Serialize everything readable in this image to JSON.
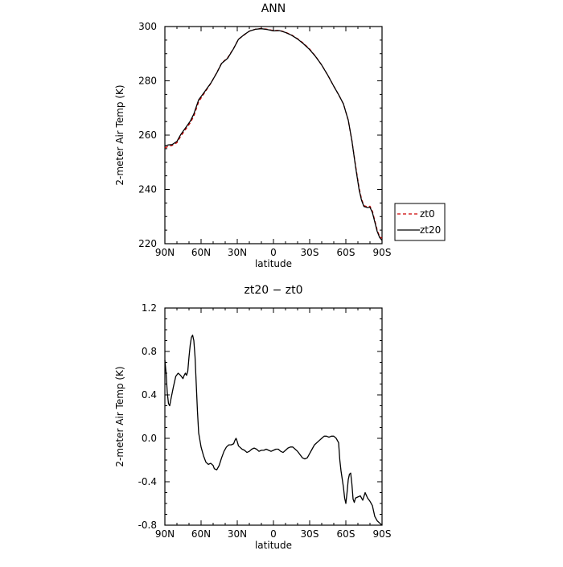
{
  "chart_data": [
    {
      "type": "line",
      "title": "ANN",
      "xlabel": "latitude",
      "ylabel": "2-meter Air Temp (K)",
      "xlim": [
        90,
        -90
      ],
      "ylim": [
        220,
        300
      ],
      "xticks": [
        90,
        60,
        30,
        0,
        -30,
        -60,
        -90
      ],
      "xtick_labels": [
        "90N",
        "60N",
        "30N",
        "0",
        "30S",
        "60S",
        "90S"
      ],
      "yticks": [
        220,
        240,
        260,
        280,
        300
      ],
      "yticks_minor_step": 5,
      "legend_position": "right",
      "series": [
        {
          "name": "zt0",
          "color": "#cc0000",
          "dash": "dashed",
          "points": [
            [
              90,
              255.3
            ],
            [
              87,
              255.9
            ],
            [
              84,
              256.2
            ],
            [
              80,
              257.2
            ],
            [
              77,
              259.5
            ],
            [
              73,
              262.0
            ],
            [
              69,
              264.5
            ],
            [
              66,
              267.0
            ],
            [
              62,
              272.3
            ],
            [
              58,
              275.0
            ],
            [
              52,
              279.0
            ],
            [
              47,
              283.0
            ],
            [
              43,
              286.5
            ],
            [
              38,
              288.5
            ],
            [
              33,
              292.0
            ],
            [
              29,
              295.3
            ],
            [
              24,
              297.0
            ],
            [
              20,
              298.3
            ],
            [
              15,
              299.0
            ],
            [
              10,
              299.3
            ],
            [
              5,
              299.0
            ],
            [
              0,
              298.5
            ],
            [
              -5,
              298.6
            ],
            [
              -10,
              297.9
            ],
            [
              -15,
              296.9
            ],
            [
              -20,
              295.5
            ],
            [
              -25,
              293.8
            ],
            [
              -30,
              291.7
            ],
            [
              -35,
              289.0
            ],
            [
              -40,
              285.8
            ],
            [
              -45,
              282.1
            ],
            [
              -50,
              278.0
            ],
            [
              -54,
              274.9
            ],
            [
              -58,
              271.5
            ],
            [
              -62,
              265.5
            ],
            [
              -65,
              258.0
            ],
            [
              -68,
              249.0
            ],
            [
              -71,
              240.5
            ],
            [
              -73,
              236.5
            ],
            [
              -75,
              234.0
            ],
            [
              -78,
              233.6
            ],
            [
              -80,
              233.8
            ],
            [
              -82,
              232.0
            ],
            [
              -84,
              228.5
            ],
            [
              -86,
              225.0
            ],
            [
              -88,
              222.6
            ],
            [
              -90,
              222.0
            ]
          ]
        },
        {
          "name": "zt20",
          "color": "#000000",
          "dash": "solid",
          "points": [
            [
              90,
              256.0
            ],
            [
              87,
              256.4
            ],
            [
              84,
              256.5
            ],
            [
              80,
              257.7
            ],
            [
              77,
              260.1
            ],
            [
              73,
              262.6
            ],
            [
              69,
              265.1
            ],
            [
              66,
              267.8
            ],
            [
              62,
              273.0
            ],
            [
              58,
              275.4
            ],
            [
              52,
              279.1
            ],
            [
              47,
              282.9
            ],
            [
              43,
              286.4
            ],
            [
              38,
              288.3
            ],
            [
              33,
              291.9
            ],
            [
              29,
              295.3
            ],
            [
              24,
              297.1
            ],
            [
              20,
              298.3
            ],
            [
              15,
              299.0
            ],
            [
              10,
              299.2
            ],
            [
              5,
              298.9
            ],
            [
              0,
              298.4
            ],
            [
              -5,
              298.5
            ],
            [
              -10,
              297.8
            ],
            [
              -15,
              296.8
            ],
            [
              -20,
              295.4
            ],
            [
              -25,
              293.6
            ],
            [
              -30,
              291.5
            ],
            [
              -35,
              288.9
            ],
            [
              -40,
              285.8
            ],
            [
              -45,
              282.1
            ],
            [
              -50,
              278.0
            ],
            [
              -54,
              274.9
            ],
            [
              -58,
              271.5
            ],
            [
              -62,
              265.5
            ],
            [
              -65,
              258.0
            ],
            [
              -68,
              248.5
            ],
            [
              -71,
              239.9
            ],
            [
              -73,
              236.0
            ],
            [
              -75,
              233.7
            ],
            [
              -78,
              233.3
            ],
            [
              -80,
              233.4
            ],
            [
              -82,
              231.5
            ],
            [
              -84,
              228.0
            ],
            [
              -86,
              224.5
            ],
            [
              -88,
              222.3
            ],
            [
              -90,
              221.2
            ]
          ]
        }
      ]
    },
    {
      "type": "line",
      "title": "zt20 − zt0",
      "xlabel": "latitude",
      "ylabel": "2-meter Air Temp (K)",
      "xlim": [
        90,
        -90
      ],
      "ylim": [
        -0.8,
        1.2
      ],
      "xticks": [
        90,
        60,
        30,
        0,
        -30,
        -60,
        -90
      ],
      "xtick_labels": [
        "90N",
        "60N",
        "30N",
        "0",
        "30S",
        "60S",
        "90S"
      ],
      "yticks": [
        -0.8,
        -0.4,
        0.0,
        0.4,
        0.8,
        1.2
      ],
      "ytick_labels": [
        "-0.8",
        "-0.4",
        "0.0",
        "0.4",
        "0.8",
        "1.2"
      ],
      "yticks_minor_step": 0.1,
      "series": [
        {
          "color": "#000000",
          "dash": "solid",
          "points": [
            [
              90,
              0.72
            ],
            [
              89,
              0.6
            ],
            [
              88,
              0.42
            ],
            [
              87,
              0.32
            ],
            [
              86,
              0.3
            ],
            [
              85,
              0.36
            ],
            [
              83,
              0.47
            ],
            [
              81,
              0.57
            ],
            [
              79,
              0.6
            ],
            [
              77,
              0.58
            ],
            [
              75,
              0.55
            ],
            [
              74,
              0.58
            ],
            [
              73,
              0.6
            ],
            [
              72,
              0.58
            ],
            [
              71,
              0.62
            ],
            [
              70,
              0.75
            ],
            [
              69,
              0.86
            ],
            [
              68,
              0.93
            ],
            [
              67,
              0.95
            ],
            [
              66,
              0.9
            ],
            [
              65,
              0.75
            ],
            [
              64,
              0.5
            ],
            [
              63,
              0.25
            ],
            [
              62,
              0.05
            ],
            [
              60,
              -0.08
            ],
            [
              58,
              -0.16
            ],
            [
              56,
              -0.22
            ],
            [
              54,
              -0.24
            ],
            [
              52,
              -0.23
            ],
            [
              50,
              -0.25
            ],
            [
              49,
              -0.28
            ],
            [
              47,
              -0.29
            ],
            [
              45,
              -0.25
            ],
            [
              43,
              -0.18
            ],
            [
              41,
              -0.12
            ],
            [
              39,
              -0.08
            ],
            [
              37,
              -0.06
            ],
            [
              35,
              -0.06
            ],
            [
              33,
              -0.05
            ],
            [
              32,
              -0.02
            ],
            [
              31,
              0.0
            ],
            [
              30,
              -0.03
            ],
            [
              29,
              -0.07
            ],
            [
              28,
              -0.08
            ],
            [
              26,
              -0.1
            ],
            [
              24,
              -0.11
            ],
            [
              22,
              -0.13
            ],
            [
              20,
              -0.12
            ],
            [
              18,
              -0.1
            ],
            [
              16,
              -0.09
            ],
            [
              14,
              -0.1
            ],
            [
              12,
              -0.12
            ],
            [
              10,
              -0.11
            ],
            [
              8,
              -0.11
            ],
            [
              6,
              -0.1
            ],
            [
              4,
              -0.11
            ],
            [
              2,
              -0.12
            ],
            [
              0,
              -0.11
            ],
            [
              -2,
              -0.1
            ],
            [
              -4,
              -0.1
            ],
            [
              -6,
              -0.12
            ],
            [
              -8,
              -0.13
            ],
            [
              -10,
              -0.11
            ],
            [
              -12,
              -0.09
            ],
            [
              -14,
              -0.08
            ],
            [
              -16,
              -0.08
            ],
            [
              -18,
              -0.1
            ],
            [
              -20,
              -0.12
            ],
            [
              -22,
              -0.15
            ],
            [
              -24,
              -0.18
            ],
            [
              -26,
              -0.19
            ],
            [
              -28,
              -0.18
            ],
            [
              -30,
              -0.14
            ],
            [
              -32,
              -0.1
            ],
            [
              -34,
              -0.06
            ],
            [
              -36,
              -0.04
            ],
            [
              -38,
              -0.02
            ],
            [
              -40,
              0.0
            ],
            [
              -42,
              0.02
            ],
            [
              -44,
              0.02
            ],
            [
              -46,
              0.01
            ],
            [
              -48,
              0.02
            ],
            [
              -50,
              0.02
            ],
            [
              -52,
              0.0
            ],
            [
              -54,
              -0.04
            ],
            [
              -55,
              -0.2
            ],
            [
              -56,
              -0.3
            ],
            [
              -58,
              -0.45
            ],
            [
              -59,
              -0.55
            ],
            [
              -60,
              -0.6
            ],
            [
              -61,
              -0.5
            ],
            [
              -62,
              -0.38
            ],
            [
              -63,
              -0.33
            ],
            [
              -64,
              -0.32
            ],
            [
              -65,
              -0.42
            ],
            [
              -66,
              -0.56
            ],
            [
              -67,
              -0.59
            ],
            [
              -68,
              -0.55
            ],
            [
              -70,
              -0.54
            ],
            [
              -72,
              -0.53
            ],
            [
              -74,
              -0.57
            ],
            [
              -76,
              -0.5
            ],
            [
              -78,
              -0.55
            ],
            [
              -80,
              -0.58
            ],
            [
              -82,
              -0.62
            ],
            [
              -84,
              -0.72
            ],
            [
              -86,
              -0.76
            ],
            [
              -88,
              -0.78
            ],
            [
              -90,
              -0.8
            ]
          ]
        }
      ]
    }
  ]
}
